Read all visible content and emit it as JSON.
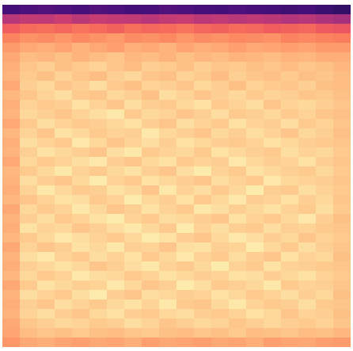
{
  "chart_data": {
    "type": "heatmap",
    "color": "magma",
    "tick_labels": false,
    "zlim": [
      0,
      1
    ],
    "cells": [
      [
        0.22,
        0.24,
        0.25,
        0.24,
        0.23,
        0.25,
        0.24,
        0.22,
        0.23,
        0.25,
        0.24,
        0.23,
        0.22,
        0.24,
        0.23,
        0.22,
        0.21,
        0.22,
        0.2,
        0.18
      ],
      [
        0.5,
        0.53,
        0.52,
        0.55,
        0.51,
        0.54,
        0.53,
        0.52,
        0.5,
        0.53,
        0.54,
        0.51,
        0.52,
        0.5,
        0.52,
        0.51,
        0.49,
        0.5,
        0.48,
        0.46
      ],
      [
        0.66,
        0.69,
        0.7,
        0.68,
        0.71,
        0.69,
        0.67,
        0.7,
        0.68,
        0.69,
        0.71,
        0.68,
        0.67,
        0.69,
        0.68,
        0.66,
        0.67,
        0.68,
        0.65,
        0.64
      ],
      [
        0.74,
        0.77,
        0.76,
        0.78,
        0.75,
        0.77,
        0.79,
        0.76,
        0.77,
        0.75,
        0.78,
        0.76,
        0.77,
        0.75,
        0.76,
        0.77,
        0.74,
        0.75,
        0.74,
        0.73
      ],
      [
        0.79,
        0.82,
        0.83,
        0.81,
        0.84,
        0.82,
        0.8,
        0.83,
        0.82,
        0.84,
        0.81,
        0.83,
        0.82,
        0.8,
        0.82,
        0.81,
        0.8,
        0.81,
        0.79,
        0.79
      ],
      [
        0.82,
        0.86,
        0.85,
        0.87,
        0.84,
        0.86,
        0.88,
        0.85,
        0.86,
        0.84,
        0.87,
        0.85,
        0.86,
        0.84,
        0.85,
        0.86,
        0.84,
        0.85,
        0.83,
        0.83
      ],
      [
        0.83,
        0.88,
        0.9,
        0.87,
        0.89,
        0.91,
        0.88,
        0.86,
        0.9,
        0.89,
        0.87,
        0.9,
        0.88,
        0.89,
        0.87,
        0.88,
        0.86,
        0.88,
        0.87,
        0.85
      ],
      [
        0.84,
        0.89,
        0.87,
        0.91,
        0.88,
        0.86,
        0.9,
        0.92,
        0.88,
        0.87,
        0.91,
        0.89,
        0.86,
        0.9,
        0.88,
        0.87,
        0.89,
        0.87,
        0.88,
        0.86
      ],
      [
        0.82,
        0.9,
        0.92,
        0.88,
        0.9,
        0.93,
        0.89,
        0.87,
        0.91,
        0.9,
        0.88,
        0.92,
        0.9,
        0.87,
        0.91,
        0.89,
        0.88,
        0.9,
        0.87,
        0.86
      ],
      [
        0.85,
        0.88,
        0.91,
        0.93,
        0.89,
        0.88,
        0.92,
        0.9,
        0.87,
        0.93,
        0.91,
        0.88,
        0.9,
        0.92,
        0.89,
        0.91,
        0.9,
        0.88,
        0.89,
        0.87
      ],
      [
        0.83,
        0.91,
        0.89,
        0.9,
        0.94,
        0.91,
        0.88,
        0.93,
        0.9,
        0.89,
        0.92,
        0.94,
        0.89,
        0.91,
        0.93,
        0.88,
        0.91,
        0.92,
        0.9,
        0.88
      ],
      [
        0.84,
        0.92,
        0.9,
        0.88,
        0.91,
        0.93,
        0.95,
        0.89,
        0.92,
        0.91,
        0.88,
        0.9,
        0.93,
        0.89,
        0.9,
        0.92,
        0.89,
        0.91,
        0.88,
        0.87
      ],
      [
        0.82,
        0.89,
        0.93,
        0.91,
        0.89,
        0.9,
        0.92,
        0.94,
        0.9,
        0.88,
        0.93,
        0.91,
        0.89,
        0.94,
        0.91,
        0.9,
        0.93,
        0.89,
        0.91,
        0.88
      ],
      [
        0.85,
        0.91,
        0.88,
        0.94,
        0.92,
        0.89,
        0.91,
        0.9,
        0.95,
        0.92,
        0.9,
        0.88,
        0.92,
        0.9,
        0.93,
        0.91,
        0.88,
        0.92,
        0.9,
        0.87
      ],
      [
        0.83,
        0.93,
        0.91,
        0.89,
        0.95,
        0.92,
        0.88,
        0.91,
        0.93,
        0.9,
        0.94,
        0.92,
        0.9,
        0.89,
        0.91,
        0.94,
        0.92,
        0.9,
        0.89,
        0.88
      ],
      [
        0.84,
        0.9,
        0.94,
        0.92,
        0.9,
        0.88,
        0.93,
        0.95,
        0.89,
        0.91,
        0.92,
        0.89,
        0.94,
        0.92,
        0.9,
        0.89,
        0.93,
        0.91,
        0.92,
        0.89
      ],
      [
        0.82,
        0.92,
        0.89,
        0.91,
        0.93,
        0.95,
        0.9,
        0.88,
        0.92,
        0.94,
        0.89,
        0.91,
        0.9,
        0.95,
        0.92,
        0.9,
        0.91,
        0.94,
        0.9,
        0.88
      ],
      [
        0.85,
        0.89,
        0.92,
        0.95,
        0.91,
        0.89,
        0.92,
        0.94,
        0.9,
        0.88,
        0.93,
        0.96,
        0.91,
        0.89,
        0.94,
        0.92,
        0.9,
        0.89,
        0.92,
        0.89
      ],
      [
        0.84,
        0.93,
        0.9,
        0.88,
        0.92,
        0.96,
        0.91,
        0.89,
        0.94,
        0.92,
        0.9,
        0.88,
        0.93,
        0.91,
        0.89,
        0.95,
        0.92,
        0.91,
        0.9,
        0.88
      ],
      [
        0.83,
        0.91,
        0.95,
        0.92,
        0.89,
        0.9,
        0.94,
        0.92,
        0.88,
        0.95,
        0.91,
        0.93,
        0.89,
        0.92,
        0.96,
        0.9,
        0.89,
        0.93,
        0.91,
        0.89
      ],
      [
        0.85,
        0.88,
        0.91,
        0.94,
        0.93,
        0.89,
        0.91,
        0.96,
        0.92,
        0.9,
        0.94,
        0.89,
        0.92,
        0.95,
        0.9,
        0.91,
        0.94,
        0.9,
        0.92,
        0.88
      ],
      [
        0.82,
        0.92,
        0.89,
        0.91,
        0.95,
        0.92,
        0.88,
        0.9,
        0.94,
        0.91,
        0.89,
        0.95,
        0.93,
        0.9,
        0.92,
        0.94,
        0.91,
        0.89,
        0.93,
        0.89
      ],
      [
        0.84,
        0.9,
        0.93,
        0.89,
        0.91,
        0.94,
        0.96,
        0.91,
        0.89,
        0.93,
        0.92,
        0.9,
        0.88,
        0.94,
        0.91,
        0.89,
        0.92,
        0.95,
        0.9,
        0.87
      ],
      [
        0.83,
        0.94,
        0.91,
        0.92,
        0.88,
        0.9,
        0.93,
        0.95,
        0.92,
        0.89,
        0.96,
        0.91,
        0.93,
        0.9,
        0.89,
        0.93,
        0.9,
        0.91,
        0.89,
        0.88
      ],
      [
        0.85,
        0.89,
        0.92,
        0.95,
        0.93,
        0.91,
        0.89,
        0.92,
        0.96,
        0.94,
        0.9,
        0.88,
        0.92,
        0.95,
        0.93,
        0.9,
        0.92,
        0.88,
        0.91,
        0.89
      ],
      [
        0.82,
        0.91,
        0.88,
        0.9,
        0.94,
        0.92,
        0.95,
        0.9,
        0.91,
        0.88,
        0.93,
        0.94,
        0.9,
        0.91,
        0.96,
        0.92,
        0.89,
        0.93,
        0.9,
        0.88
      ],
      [
        0.84,
        0.93,
        0.95,
        0.91,
        0.89,
        0.93,
        0.91,
        0.94,
        0.89,
        0.92,
        0.95,
        0.91,
        0.89,
        0.93,
        0.9,
        0.88,
        0.94,
        0.91,
        0.92,
        0.87
      ],
      [
        0.83,
        0.9,
        0.92,
        0.94,
        0.92,
        0.88,
        0.9,
        0.93,
        0.95,
        0.91,
        0.89,
        0.92,
        0.96,
        0.91,
        0.89,
        0.94,
        0.91,
        0.9,
        0.89,
        0.88
      ],
      [
        0.85,
        0.92,
        0.89,
        0.91,
        0.95,
        0.93,
        0.92,
        0.89,
        0.91,
        0.94,
        0.92,
        0.9,
        0.91,
        0.94,
        0.93,
        0.9,
        0.92,
        0.94,
        0.91,
        0.89
      ],
      [
        0.82,
        0.89,
        0.94,
        0.92,
        0.9,
        0.91,
        0.95,
        0.92,
        0.88,
        0.9,
        0.96,
        0.93,
        0.89,
        0.9,
        0.92,
        0.95,
        0.89,
        0.91,
        0.9,
        0.88
      ],
      [
        0.84,
        0.93,
        0.91,
        0.89,
        0.93,
        0.96,
        0.9,
        0.88,
        0.93,
        0.92,
        0.9,
        0.91,
        0.94,
        0.92,
        0.89,
        0.91,
        0.93,
        0.9,
        0.92,
        0.87
      ],
      [
        0.83,
        0.9,
        0.88,
        0.93,
        0.91,
        0.89,
        0.92,
        0.94,
        0.91,
        0.95,
        0.89,
        0.88,
        0.92,
        0.95,
        0.91,
        0.89,
        0.9,
        0.93,
        0.89,
        0.88
      ],
      [
        0.84,
        0.91,
        0.93,
        0.9,
        0.88,
        0.92,
        0.94,
        0.9,
        0.89,
        0.92,
        0.93,
        0.9,
        0.89,
        0.91,
        0.94,
        0.92,
        0.88,
        0.91,
        0.9,
        0.87
      ],
      [
        0.82,
        0.88,
        0.9,
        0.92,
        0.91,
        0.89,
        0.9,
        0.93,
        0.91,
        0.88,
        0.9,
        0.92,
        0.91,
        0.88,
        0.9,
        0.92,
        0.9,
        0.89,
        0.91,
        0.88
      ],
      [
        0.81,
        0.86,
        0.88,
        0.87,
        0.89,
        0.87,
        0.86,
        0.88,
        0.89,
        0.87,
        0.86,
        0.88,
        0.87,
        0.89,
        0.86,
        0.87,
        0.88,
        0.86,
        0.87,
        0.85
      ],
      [
        0.78,
        0.82,
        0.83,
        0.81,
        0.8,
        0.82,
        0.81,
        0.83,
        0.8,
        0.82,
        0.81,
        0.8,
        0.82,
        0.81,
        0.83,
        0.8,
        0.81,
        0.82,
        0.8,
        0.79
      ]
    ]
  }
}
